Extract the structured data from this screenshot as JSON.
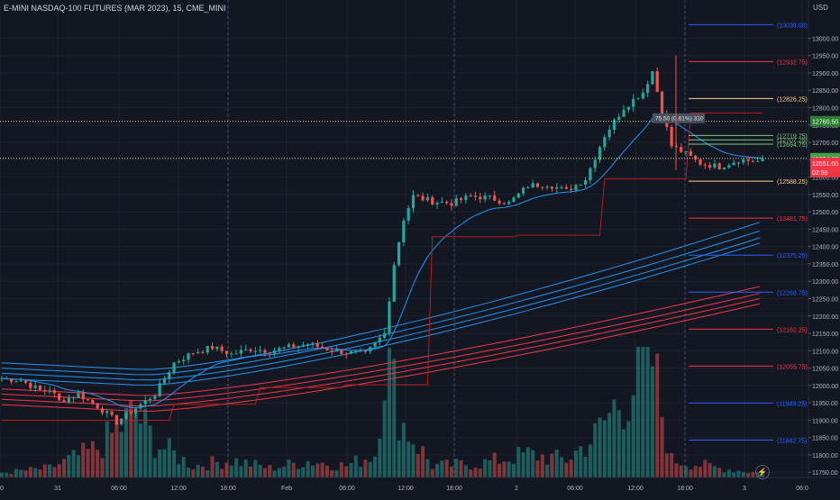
{
  "header": {
    "symbol_title": "E-MINI NASDAQ-100 FUTURES (MAR 2023), 15, CME_MINI",
    "currency": "USD"
  },
  "icons": {
    "replay": "lightning-icon"
  },
  "colors": {
    "background": "#131722",
    "grid": "#1e222d",
    "up": "#26a69a",
    "down": "#ef5350",
    "level_yellow": "#f5d78f",
    "level_red": "#f23645",
    "level_blue": "#2962ff",
    "level_green": "#81c784",
    "ma_blue": "#2196f3",
    "ma_red": "#f23645"
  },
  "chart_data": {
    "type": "candlestick",
    "y_axis": {
      "range": [
        11735,
        13110
      ],
      "ticks": [
        11750,
        11800,
        11850,
        11900,
        11950,
        12000,
        12050,
        12100,
        12150,
        12200,
        12250,
        12300,
        12350,
        12400,
        12450,
        12500,
        12550,
        12600,
        12650,
        12700,
        12750,
        12800,
        12850,
        12900,
        12950,
        13000
      ],
      "tick_labels": [
        "11750.00",
        "11800.00",
        "11850.00",
        "11900.00",
        "11950.00",
        "12000.00",
        "12050.00",
        "12100.00",
        "12150.00",
        "12200.00",
        "12250.00",
        "12300.00",
        "12350.00",
        "12400.00",
        "12450.00",
        "12500.00",
        "12550.00",
        "12600.00",
        "12650.00",
        "12700.00",
        "12750.00",
        "12800.00",
        "12850.00",
        "12900.00",
        "12950.00",
        "13000.00"
      ]
    },
    "x_axis": {
      "labels": [
        "00",
        "31",
        "06:00",
        "12:00",
        "18:00",
        "Feb",
        "06:00",
        "12:00",
        "18:00",
        "2",
        "06:00",
        "12:00",
        "18:00",
        "3",
        "06:0"
      ]
    },
    "levels": [
      {
        "label": "(13039.00)",
        "value": 13039.0,
        "color": "#2962ff"
      },
      {
        "label": "(12932.75)",
        "value": 12932.75,
        "color": "#f23645"
      },
      {
        "label": "(12826.25)",
        "value": 12826.25,
        "color": "#f5d78f"
      },
      {
        "label": "(12719.75)",
        "value": 12719.75,
        "color": "#81c784"
      },
      {
        "label": "(12707.25)",
        "value": 12707.25,
        "color": "#81c784"
      },
      {
        "label": "(12694.75)",
        "value": 12694.75,
        "color": "#81c784"
      },
      {
        "label": "(12588.25)",
        "value": 12588.25,
        "color": "#f5d78f"
      },
      {
        "label": "(12481.75)",
        "value": 12481.75,
        "color": "#f23645"
      },
      {
        "label": "(12375.25)",
        "value": 12375.25,
        "color": "#2962ff"
      },
      {
        "label": "(12268.75)",
        "value": 12268.75,
        "color": "#2962ff"
      },
      {
        "label": "(12162.25)",
        "value": 12162.25,
        "color": "#f23645"
      },
      {
        "label": "(12055.75)",
        "value": 12055.75,
        "color": "#f23645"
      },
      {
        "label": "(11949.25)",
        "value": 11949.25,
        "color": "#2962ff"
      },
      {
        "label": "(11842.75)",
        "value": 11842.75,
        "color": "#2962ff"
      }
    ],
    "price_badges": [
      {
        "label": "12760.50",
        "value": 12760.5,
        "color": "#2e7d32"
      },
      {
        "label": "12654.00",
        "value": 12654.0,
        "color": "#43a047"
      }
    ],
    "last_price": {
      "label": "12651.00",
      "countdown": "02:59",
      "value": 12651.0,
      "color": "#f23645"
    },
    "annotation": {
      "text": "75.50 (0.61%) 310",
      "value": 12760.5
    },
    "ohlc_keyframes": [
      [
        0,
        12020
      ],
      [
        4,
        12015
      ],
      [
        8,
        11985
      ],
      [
        10,
        11990
      ],
      [
        12,
        11955
      ],
      [
        16,
        11975
      ],
      [
        20,
        11940
      ],
      [
        24,
        11895
      ],
      [
        28,
        11935
      ],
      [
        32,
        11975
      ],
      [
        36,
        12065
      ],
      [
        40,
        12095
      ],
      [
        44,
        12110
      ],
      [
        48,
        12090
      ],
      [
        52,
        12105
      ],
      [
        56,
        12100
      ],
      [
        60,
        12110
      ],
      [
        64,
        12120
      ],
      [
        68,
        12105
      ],
      [
        72,
        12095
      ],
      [
        76,
        12090
      ],
      [
        80,
        12150
      ],
      [
        82,
        12350
      ],
      [
        84,
        12480
      ],
      [
        86,
        12545
      ],
      [
        90,
        12530
      ],
      [
        94,
        12525
      ],
      [
        98,
        12545
      ],
      [
        102,
        12540
      ],
      [
        106,
        12525
      ],
      [
        110,
        12575
      ],
      [
        114,
        12580
      ],
      [
        118,
        12560
      ],
      [
        122,
        12595
      ],
      [
        126,
        12720
      ],
      [
        130,
        12800
      ],
      [
        134,
        12845
      ],
      [
        136,
        12905
      ],
      [
        138,
        12790
      ],
      [
        140,
        12690
      ],
      [
        142,
        12675
      ],
      [
        146,
        12640
      ],
      [
        150,
        12630
      ],
      [
        154,
        12650
      ],
      [
        158,
        12645
      ]
    ],
    "volume_keyframes": [
      [
        0,
        4
      ],
      [
        10,
        8
      ],
      [
        20,
        25
      ],
      [
        28,
        55
      ],
      [
        32,
        30
      ],
      [
        40,
        10
      ],
      [
        48,
        15
      ],
      [
        56,
        8
      ],
      [
        64,
        14
      ],
      [
        72,
        10
      ],
      [
        78,
        20
      ],
      [
        80,
        105
      ],
      [
        82,
        75
      ],
      [
        84,
        45
      ],
      [
        90,
        10
      ],
      [
        100,
        12
      ],
      [
        110,
        20
      ],
      [
        118,
        15
      ],
      [
        124,
        35
      ],
      [
        128,
        60
      ],
      [
        132,
        80
      ],
      [
        136,
        100
      ],
      [
        138,
        55
      ],
      [
        140,
        15
      ],
      [
        150,
        8
      ],
      [
        158,
        4
      ]
    ]
  }
}
